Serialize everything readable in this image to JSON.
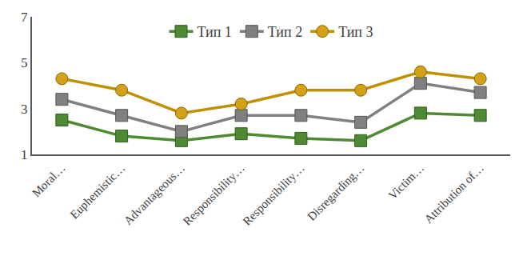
{
  "chart_data": {
    "type": "line",
    "categories": [
      "Moral…",
      "Euphemistic…",
      "Advantageous…",
      "Responsibility…",
      "Responsibility…",
      "Disregarding…",
      "Victim…",
      "Attribution of…"
    ],
    "series": [
      {
        "name": "Тип 1",
        "color": "#4e8a33",
        "marker": "square",
        "line_style": "solid",
        "values": [
          2.5,
          1.8,
          1.6,
          1.9,
          1.7,
          1.6,
          2.8,
          2.7
        ]
      },
      {
        "name": "Тип 2",
        "color": "#808080",
        "marker": "square",
        "line_style": "solid",
        "values": [
          3.4,
          2.7,
          2.0,
          2.7,
          2.7,
          2.4,
          4.1,
          3.7
        ]
      },
      {
        "name": "Тип 3",
        "color": "#bf9000",
        "marker": "circle",
        "line_style": "solid",
        "values": [
          4.3,
          3.8,
          2.8,
          3.2,
          3.8,
          3.8,
          4.6,
          4.3
        ]
      }
    ],
    "ylim": [
      1,
      7
    ],
    "yticks": [
      1,
      3,
      5,
      7
    ],
    "grid": false,
    "legend": "top"
  }
}
